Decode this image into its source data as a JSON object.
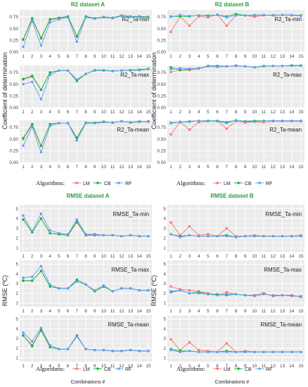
{
  "colors": {
    "LM": "#f8766d",
    "CB": "#00ba38",
    "RF": "#619cff",
    "title": "#2e9a3e",
    "panel_bg": "#ebebeb",
    "grid": "#ffffff"
  },
  "legend": {
    "title": "Algorithms:",
    "items": [
      "LM",
      "CB",
      "RF"
    ]
  },
  "chart_data": [
    {
      "type": "line",
      "title": "R2 dataset A",
      "ylabel": "Coefficient of determination",
      "xlabel": "",
      "categories": [
        1,
        2,
        3,
        4,
        5,
        6,
        7,
        8,
        9,
        10,
        11,
        12,
        13,
        14,
        15
      ],
      "ticks": [
        0,
        0.25,
        0.5,
        0.75
      ],
      "tick_labels": [
        "0.00",
        "0.25",
        "0.50",
        "0.75"
      ],
      "ylim": [
        0,
        0.9
      ],
      "grid": true,
      "panels": [
        {
          "label": "R2_Ta-min",
          "series": [
            {
              "name": "LM",
              "values": [
                0.26,
                0.7,
                0.29,
                0.69,
                0.72,
                0.75,
                0.33,
                0.75,
                0.72,
                0.74,
                0.72,
                0.77,
                0.75,
                0.75,
                0.74
              ]
            },
            {
              "name": "CB",
              "values": [
                0.27,
                0.72,
                0.3,
                0.7,
                0.73,
                0.76,
                0.34,
                0.76,
                0.72,
                0.75,
                0.73,
                0.78,
                0.76,
                0.76,
                0.75
              ]
            },
            {
              "name": "RF",
              "values": [
                0.11,
                0.66,
                0.14,
                0.63,
                0.7,
                0.74,
                0.22,
                0.74,
                0.71,
                0.74,
                0.72,
                0.77,
                0.75,
                0.75,
                0.74
              ]
            }
          ]
        },
        {
          "label": "R2_Ta-max",
          "series": [
            {
              "name": "LM",
              "values": [
                0.6,
                0.66,
                0.38,
                0.75,
                0.79,
                0.79,
                0.57,
                0.72,
                0.8,
                0.79,
                0.78,
                0.79,
                0.8,
                0.8,
                0.82
              ]
            },
            {
              "name": "CB",
              "values": [
                0.61,
                0.68,
                0.38,
                0.75,
                0.79,
                0.79,
                0.57,
                0.72,
                0.8,
                0.8,
                0.78,
                0.79,
                0.8,
                0.81,
                0.83
              ]
            },
            {
              "name": "RF",
              "values": [
                0.5,
                0.55,
                0.18,
                0.7,
                0.79,
                0.79,
                0.6,
                0.72,
                0.79,
                0.79,
                0.78,
                0.79,
                0.79,
                0.8,
                0.82
              ]
            }
          ]
        },
        {
          "label": "R2_Ta-mean",
          "series": [
            {
              "name": "LM",
              "values": [
                0.5,
                0.8,
                0.35,
                0.82,
                0.84,
                0.84,
                0.52,
                0.84,
                0.84,
                0.86,
                0.85,
                0.88,
                0.85,
                0.87,
                0.87
              ]
            },
            {
              "name": "CB",
              "values": [
                0.52,
                0.82,
                0.36,
                0.82,
                0.84,
                0.84,
                0.53,
                0.85,
                0.85,
                0.87,
                0.85,
                0.88,
                0.86,
                0.87,
                0.88
              ]
            },
            {
              "name": "RF",
              "values": [
                0.36,
                0.76,
                0.22,
                0.78,
                0.84,
                0.84,
                0.47,
                0.84,
                0.84,
                0.86,
                0.85,
                0.88,
                0.86,
                0.88,
                0.87
              ]
            }
          ]
        }
      ]
    },
    {
      "type": "line",
      "title": "R2 dataset B",
      "ylabel": "Coefficient of determination",
      "xlabel": "",
      "categories": [
        1,
        2,
        3,
        4,
        5,
        6,
        7,
        8,
        9,
        10,
        11,
        12,
        13,
        14,
        15
      ],
      "ticks": [
        0,
        0.25,
        0.5,
        0.75
      ],
      "tick_labels": [
        "0.00",
        "0.25",
        "0.50",
        "0.75"
      ],
      "ylim": [
        0,
        0.9
      ],
      "grid": true,
      "panels": [
        {
          "label": "R2_Ta-min",
          "series": [
            {
              "name": "LM",
              "values": [
                0.43,
                0.76,
                0.56,
                0.76,
                0.74,
                0.8,
                0.56,
                0.78,
                0.78,
                0.75,
                0.78,
                0.79,
                0.79,
                0.78,
                0.77
              ]
            },
            {
              "name": "CB",
              "values": [
                0.76,
                0.76,
                0.76,
                0.78,
                0.78,
                0.79,
                0.76,
                0.81,
                0.78,
                0.79,
                0.79,
                0.78,
                0.79,
                0.79,
                0.78
              ]
            },
            {
              "name": "RF",
              "values": [
                0.75,
                0.79,
                0.77,
                0.78,
                0.77,
                0.79,
                0.74,
                0.78,
                0.78,
                0.78,
                0.79,
                0.78,
                0.79,
                0.79,
                0.77
              ]
            }
          ]
        },
        {
          "label": "R2_Ta-max",
          "series": [
            {
              "name": "LM",
              "values": [
                0.76,
                0.8,
                0.8,
                0.83,
                0.88,
                0.89,
                0.88,
                0.9,
                0.88,
                0.86,
                0.88,
                0.89,
                0.89,
                0.9,
                0.89
              ]
            },
            {
              "name": "CB",
              "values": [
                0.86,
                0.8,
                0.82,
                0.84,
                0.89,
                0.89,
                0.88,
                0.89,
                0.88,
                0.86,
                0.89,
                0.89,
                0.89,
                0.9,
                0.9
              ]
            },
            {
              "name": "RF",
              "values": [
                0.82,
                0.84,
                0.83,
                0.84,
                0.88,
                0.87,
                0.88,
                0.89,
                0.88,
                0.86,
                0.88,
                0.89,
                0.89,
                0.89,
                0.89
              ]
            }
          ]
        },
        {
          "label": "R2_Ta-mean",
          "series": [
            {
              "name": "LM",
              "values": [
                0.6,
                0.87,
                0.7,
                0.86,
                0.88,
                0.89,
                0.72,
                0.88,
                0.85,
                0.87,
                0.86,
                0.88,
                0.88,
                0.88,
                0.88
              ]
            },
            {
              "name": "CB",
              "values": [
                0.84,
                0.86,
                0.87,
                0.89,
                0.89,
                0.89,
                0.86,
                0.9,
                0.88,
                0.89,
                0.89,
                0.89,
                0.89,
                0.89,
                0.89
              ]
            },
            {
              "name": "RF",
              "values": [
                0.85,
                0.86,
                0.88,
                0.89,
                0.88,
                0.88,
                0.84,
                0.9,
                0.87,
                0.87,
                0.89,
                0.89,
                0.89,
                0.89,
                0.89
              ]
            }
          ]
        }
      ]
    },
    {
      "type": "line",
      "title": "RMSE dataset A",
      "ylabel": "RMSE (ºC)",
      "xlabel": "Combinations #",
      "categories": [
        1,
        2,
        3,
        4,
        5,
        6,
        7,
        8,
        9,
        10,
        11,
        12,
        13,
        14,
        15
      ],
      "ticks": [
        1,
        2,
        3,
        4,
        5
      ],
      "tick_labels": [
        "1",
        "2",
        "3",
        "4",
        "5"
      ],
      "ylim": [
        0.6,
        5.4
      ],
      "grid": true,
      "panels": [
        {
          "label": "RMSE_Ta-min",
          "series": [
            {
              "name": "LM",
              "values": [
                3.9,
                2.6,
                4.0,
                2.5,
                2.4,
                2.3,
                3.6,
                2.3,
                2.4,
                2.3,
                2.3,
                2.2,
                2.3,
                2.2,
                2.2
              ]
            },
            {
              "name": "CB",
              "values": [
                3.9,
                2.6,
                4.0,
                2.5,
                2.4,
                2.3,
                3.7,
                2.3,
                2.3,
                2.3,
                2.3,
                2.2,
                2.3,
                2.2,
                2.2
              ]
            },
            {
              "name": "RF",
              "values": [
                4.3,
                2.7,
                4.5,
                2.8,
                2.5,
                2.4,
                3.9,
                2.4,
                2.4,
                2.3,
                2.3,
                2.2,
                2.3,
                2.2,
                2.2
              ]
            }
          ]
        },
        {
          "label": "RMSE_Ta-max",
          "series": [
            {
              "name": "LM",
              "values": [
                3.3,
                3.3,
                4.3,
                2.7,
                2.5,
                2.5,
                3.4,
                2.9,
                2.2,
                2.7,
                2.2,
                2.5,
                2.5,
                2.3,
                2.3
              ]
            },
            {
              "name": "CB",
              "values": [
                3.3,
                3.3,
                4.3,
                2.7,
                2.5,
                2.5,
                3.4,
                2.9,
                2.2,
                2.7,
                2.2,
                2.5,
                2.5,
                2.3,
                2.3
              ]
            },
            {
              "name": "RF",
              "values": [
                3.6,
                3.7,
                4.8,
                2.9,
                2.5,
                2.5,
                3.2,
                2.9,
                2.3,
                2.8,
                2.2,
                2.5,
                2.5,
                2.3,
                2.3
              ]
            }
          ]
        },
        {
          "label": "RMSE_Ta-mean",
          "series": [
            {
              "name": "LM",
              "values": [
                3.3,
                2.3,
                3.8,
                2.1,
                1.9,
                1.9,
                3.3,
                1.9,
                1.8,
                1.8,
                1.7,
                1.7,
                1.8,
                1.7,
                1.7
              ]
            },
            {
              "name": "CB",
              "values": [
                3.3,
                2.2,
                3.9,
                2.1,
                1.9,
                1.9,
                3.3,
                1.9,
                1.8,
                1.8,
                1.7,
                1.7,
                1.8,
                1.7,
                1.7
              ]
            },
            {
              "name": "RF",
              "values": [
                3.6,
                2.7,
                4.1,
                2.3,
                1.9,
                1.9,
                3.2,
                1.9,
                1.8,
                1.8,
                1.7,
                1.7,
                1.8,
                1.7,
                1.7
              ]
            }
          ]
        }
      ]
    },
    {
      "type": "line",
      "title": "RMSE dataset B",
      "ylabel": "RMSE (ºC)",
      "xlabel": "Combinations #",
      "categories": [
        1,
        2,
        3,
        4,
        5,
        6,
        7,
        8,
        9,
        10,
        11,
        12,
        13,
        14,
        15
      ],
      "ticks": [
        1,
        2,
        3,
        4,
        5
      ],
      "tick_labels": [
        "1",
        "2",
        "3",
        "4",
        "5"
      ],
      "ylim": [
        0.6,
        5.4
      ],
      "grid": true,
      "panels": [
        {
          "label": "RMSE_Ta-min",
          "series": [
            {
              "name": "LM",
              "values": [
                3.6,
                2.3,
                3.2,
                2.3,
                2.4,
                2.2,
                3.0,
                2.2,
                2.2,
                2.3,
                2.2,
                2.2,
                2.2,
                2.2,
                2.3
              ]
            },
            {
              "name": "CB",
              "values": [
                2.4,
                2.2,
                2.3,
                2.2,
                2.2,
                2.2,
                2.3,
                2.1,
                2.2,
                2.2,
                2.2,
                2.2,
                2.2,
                2.2,
                2.2
              ]
            },
            {
              "name": "RF",
              "values": [
                2.4,
                2.1,
                2.3,
                2.2,
                2.2,
                2.2,
                2.2,
                2.1,
                2.2,
                2.2,
                2.2,
                2.2,
                2.2,
                2.2,
                2.2
              ]
            }
          ]
        },
        {
          "label": "RMSE_Ta-max",
          "series": [
            {
              "name": "LM",
              "values": [
                2.7,
                2.4,
                2.3,
                2.2,
                2.0,
                1.8,
                2.1,
                1.9,
                1.8,
                1.7,
                1.9,
                1.8,
                1.8,
                1.7,
                1.7
              ]
            },
            {
              "name": "CB",
              "values": [
                2.1,
                2.3,
                2.0,
                2.1,
                1.9,
                1.9,
                1.8,
                1.9,
                1.8,
                1.8,
                2.0,
                1.7,
                1.8,
                1.8,
                1.6
              ]
            },
            {
              "name": "RF",
              "values": [
                2.2,
                2.3,
                2.0,
                2.0,
                1.9,
                1.8,
                1.9,
                1.9,
                1.8,
                1.8,
                2.0,
                1.7,
                1.8,
                1.8,
                1.6
              ]
            }
          ]
        },
        {
          "label": "RMSE_Ta-mean",
          "series": [
            {
              "name": "LM",
              "values": [
                2.9,
                1.8,
                2.6,
                1.8,
                1.7,
                1.6,
                2.5,
                1.6,
                1.7,
                1.6,
                1.6,
                1.6,
                1.6,
                1.6,
                1.6
              ]
            },
            {
              "name": "CB",
              "values": [
                1.9,
                1.7,
                1.7,
                1.6,
                1.6,
                1.6,
                1.7,
                1.6,
                1.6,
                1.6,
                1.6,
                1.6,
                1.6,
                1.6,
                1.6
              ]
            },
            {
              "name": "RF",
              "values": [
                1.8,
                1.6,
                1.7,
                1.6,
                1.6,
                1.6,
                1.6,
                1.6,
                1.6,
                1.6,
                1.6,
                1.6,
                1.6,
                1.6,
                1.6
              ]
            }
          ]
        }
      ]
    }
  ]
}
